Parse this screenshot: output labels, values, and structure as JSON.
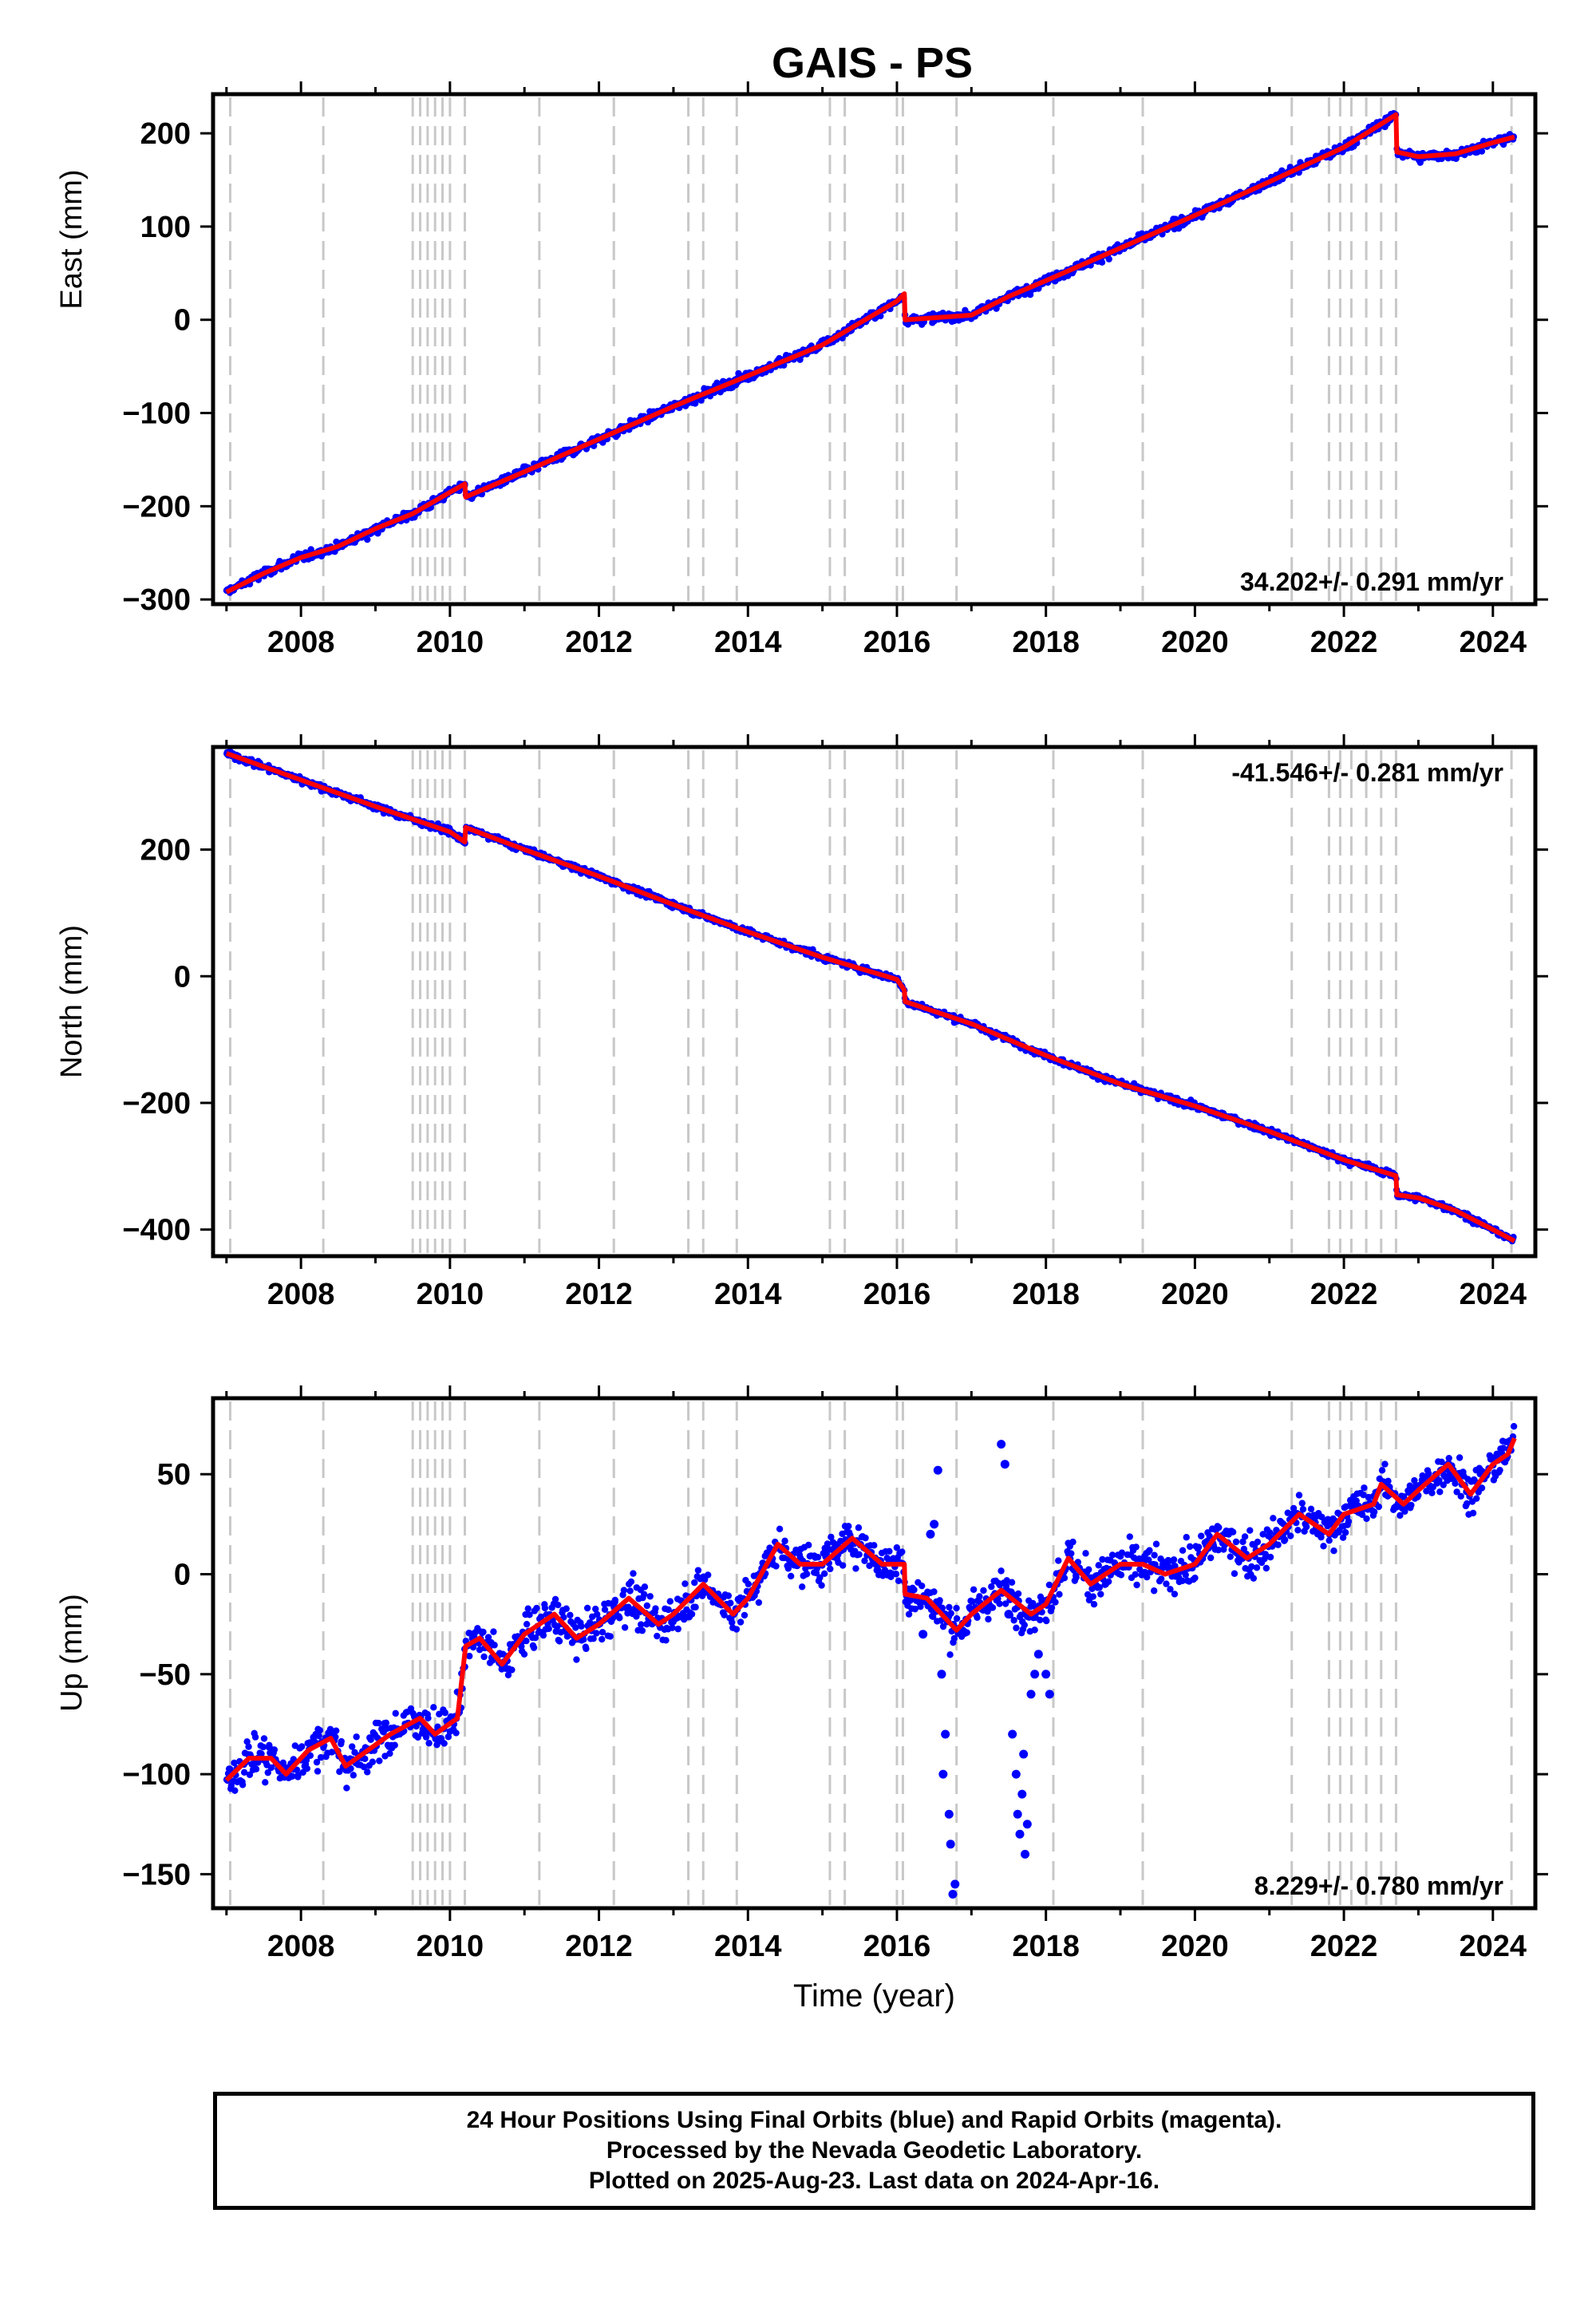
{
  "page": {
    "title": "GAIS - PS"
  },
  "colors": {
    "final_orbit_points": "#0000ff",
    "model_fit": "#ff0000",
    "event_lines": "#c8c8c8",
    "axes": "#000000"
  },
  "chart_data": [
    {
      "type": "scatter",
      "title": "GAIS - PS",
      "xlabel": "",
      "ylabel": "East (mm)",
      "xlim": [
        2006.82,
        2024.57
      ],
      "ylim": [
        -305,
        242
      ],
      "x_ticks": [
        2008,
        2010,
        2012,
        2014,
        2016,
        2018,
        2020,
        2022,
        2024
      ],
      "x_tick_labels": [
        "2008",
        "2010",
        "2012",
        "2014",
        "2016",
        "2018",
        "2020",
        "2022",
        "2024"
      ],
      "y_ticks": [
        -300,
        -200,
        -100,
        0,
        100,
        200
      ],
      "y_tick_labels": [
        "−300",
        "−200",
        "−100",
        "0",
        "100",
        "200"
      ],
      "rate_label": "34.202+/- 0.291 mm/yr",
      "rate_position": "bottom-right",
      "grid": false,
      "event_lines": [
        2007.05,
        2008.3,
        2009.5,
        2009.6,
        2009.7,
        2009.8,
        2009.9,
        2010.0,
        2010.2,
        2011.2,
        2012.2,
        2013.2,
        2013.4,
        2013.85,
        2015.1,
        2015.3,
        2016.0,
        2016.08,
        2016.8,
        2018.1,
        2019.3,
        2021.3,
        2021.8,
        2021.95,
        2022.1,
        2022.3,
        2022.5,
        2022.7,
        2024.25
      ],
      "series": [
        {
          "name": "final orbits",
          "x": [
            2007.0,
            2007.5,
            2008.0,
            2008.5,
            2009.0,
            2009.5,
            2010.0,
            2010.2,
            2010.21,
            2011.0,
            2012.0,
            2013.0,
            2014.0,
            2015.0,
            2016.0,
            2016.1,
            2016.11,
            2017.0,
            2017.5,
            2018.0,
            2019.0,
            2020.0,
            2021.0,
            2022.0,
            2022.7,
            2022.71,
            2023.0,
            2023.5,
            2024.0,
            2024.29
          ],
          "y": [
            -292,
            -272,
            -255,
            -243,
            -224,
            -208,
            -185,
            -176,
            -190,
            -163,
            -128,
            -93,
            -60,
            -27,
            20,
            28,
            0,
            5,
            25,
            42,
            77,
            112,
            148,
            185,
            220,
            180,
            175,
            178,
            190,
            196
          ]
        },
        {
          "name": "model fit",
          "x": [
            2007.0,
            2007.5,
            2008.0,
            2008.5,
            2009.0,
            2009.5,
            2010.0,
            2010.2,
            2010.21,
            2011.0,
            2012.0,
            2013.0,
            2014.0,
            2015.0,
            2016.0,
            2016.1,
            2016.11,
            2017.0,
            2017.5,
            2018.0,
            2019.0,
            2020.0,
            2021.0,
            2022.0,
            2022.7,
            2022.71,
            2023.0,
            2023.5,
            2024.0,
            2024.29
          ],
          "y": [
            -292,
            -272,
            -255,
            -243,
            -224,
            -208,
            -185,
            -176,
            -190,
            -163,
            -128,
            -93,
            -60,
            -27,
            20,
            28,
            0,
            5,
            25,
            42,
            77,
            112,
            148,
            185,
            220,
            180,
            175,
            178,
            190,
            196
          ]
        }
      ]
    },
    {
      "type": "scatter",
      "xlabel": "",
      "ylabel": "North (mm)",
      "xlim": [
        2006.82,
        2024.57
      ],
      "ylim": [
        -442,
        362
      ],
      "x_ticks": [
        2008,
        2010,
        2012,
        2014,
        2016,
        2018,
        2020,
        2022,
        2024
      ],
      "x_tick_labels": [
        "2008",
        "2010",
        "2012",
        "2014",
        "2016",
        "2018",
        "2020",
        "2022",
        "2024"
      ],
      "y_ticks": [
        -400,
        -200,
        0,
        200
      ],
      "y_tick_labels": [
        "−400",
        "−200",
        "0",
        "200"
      ],
      "rate_label": "-41.546+/- 0.281 mm/yr",
      "rate_position": "top-right",
      "grid": false,
      "event_lines": [
        2007.05,
        2008.3,
        2009.5,
        2009.6,
        2009.7,
        2009.8,
        2009.9,
        2010.0,
        2010.2,
        2011.2,
        2012.2,
        2013.2,
        2013.4,
        2013.85,
        2015.1,
        2015.3,
        2016.0,
        2016.08,
        2016.8,
        2018.1,
        2019.3,
        2021.3,
        2021.8,
        2021.95,
        2022.1,
        2022.3,
        2022.5,
        2022.7,
        2024.25
      ],
      "series": [
        {
          "name": "final orbits",
          "x": [
            2007.0,
            2008.0,
            2009.0,
            2010.0,
            2010.2,
            2010.21,
            2011.0,
            2012.0,
            2013.0,
            2014.0,
            2015.0,
            2016.0,
            2016.1,
            2016.11,
            2017.0,
            2018.0,
            2019.0,
            2020.0,
            2021.0,
            2022.0,
            2022.7,
            2022.71,
            2023.0,
            2023.5,
            2024.0,
            2024.29
          ],
          "y": [
            352,
            310,
            268,
            228,
            212,
            235,
            200,
            158,
            113,
            70,
            30,
            -5,
            -22,
            -40,
            -75,
            -125,
            -170,
            -205,
            -245,
            -290,
            -315,
            -345,
            -350,
            -370,
            -400,
            -418
          ]
        },
        {
          "name": "model fit",
          "x": [
            2007.0,
            2008.0,
            2009.0,
            2010.0,
            2010.2,
            2010.21,
            2011.0,
            2012.0,
            2013.0,
            2014.0,
            2015.0,
            2016.0,
            2016.1,
            2016.11,
            2017.0,
            2018.0,
            2019.0,
            2020.0,
            2021.0,
            2022.0,
            2022.7,
            2022.71,
            2023.0,
            2023.5,
            2024.0,
            2024.29
          ],
          "y": [
            352,
            310,
            268,
            228,
            212,
            235,
            200,
            158,
            113,
            70,
            30,
            -5,
            -22,
            -40,
            -75,
            -125,
            -170,
            -205,
            -245,
            -290,
            -315,
            -345,
            -350,
            -370,
            -400,
            -418
          ]
        }
      ]
    },
    {
      "type": "scatter",
      "xlabel": "Time (year)",
      "ylabel": "Up (mm)",
      "xlim": [
        2006.82,
        2024.57
      ],
      "ylim": [
        -167,
        88
      ],
      "x_ticks": [
        2008,
        2010,
        2012,
        2014,
        2016,
        2018,
        2020,
        2022,
        2024
      ],
      "x_tick_labels": [
        "2008",
        "2010",
        "2012",
        "2014",
        "2016",
        "2018",
        "2020",
        "2022",
        "2024"
      ],
      "y_ticks": [
        -150,
        -100,
        -50,
        0,
        50
      ],
      "y_tick_labels": [
        "−150",
        "−100",
        "−50",
        "0",
        "50"
      ],
      "rate_label": "8.229+/- 0.780 mm/yr",
      "rate_position": "bottom-right",
      "grid": false,
      "event_lines": [
        2007.05,
        2008.3,
        2009.5,
        2009.6,
        2009.7,
        2009.8,
        2009.9,
        2010.0,
        2010.2,
        2011.2,
        2012.2,
        2013.2,
        2013.4,
        2013.85,
        2015.1,
        2015.3,
        2016.0,
        2016.08,
        2016.8,
        2018.1,
        2019.3,
        2021.3,
        2021.8,
        2021.95,
        2022.1,
        2022.3,
        2022.5,
        2022.7,
        2024.25
      ],
      "series": [
        {
          "name": "final orbits",
          "x": [
            2007.0,
            2007.3,
            2007.6,
            2007.8,
            2008.1,
            2008.4,
            2008.6,
            2008.9,
            2009.2,
            2009.6,
            2009.8,
            2010.1,
            2010.21,
            2010.4,
            2010.7,
            2011.0,
            2011.4,
            2011.7,
            2012.0,
            2012.4,
            2012.8,
            2013.0,
            2013.4,
            2013.8,
            2014.0,
            2014.4,
            2014.7,
            2015.0,
            2015.4,
            2015.8,
            2016.0,
            2016.1,
            2016.11,
            2016.4,
            2016.8,
            2017.0,
            2017.4,
            2017.8,
            2018.0,
            2018.3,
            2018.6,
            2019.0,
            2019.3,
            2019.6,
            2020.0,
            2020.3,
            2020.7,
            2021.0,
            2021.4,
            2021.8,
            2022.0,
            2022.4,
            2022.5,
            2022.8,
            2023.0,
            2023.4,
            2023.7,
            2024.0,
            2024.2,
            2024.29
          ],
          "y": [
            -103,
            -92,
            -92,
            -100,
            -88,
            -82,
            -96,
            -88,
            -80,
            -72,
            -80,
            -72,
            -36,
            -32,
            -45,
            -30,
            -20,
            -32,
            -25,
            -12,
            -25,
            -20,
            -5,
            -20,
            -12,
            15,
            5,
            5,
            18,
            5,
            5,
            5,
            -10,
            -12,
            -28,
            -20,
            -8,
            -20,
            -15,
            8,
            -5,
            5,
            5,
            0,
            5,
            20,
            8,
            15,
            30,
            20,
            30,
            35,
            45,
            35,
            42,
            55,
            40,
            55,
            60,
            68
          ]
        },
        {
          "name": "model fit",
          "x": [
            2007.0,
            2007.3,
            2007.6,
            2007.8,
            2008.1,
            2008.4,
            2008.6,
            2008.9,
            2009.2,
            2009.6,
            2009.8,
            2010.1,
            2010.21,
            2010.4,
            2010.7,
            2011.0,
            2011.4,
            2011.7,
            2012.0,
            2012.4,
            2012.8,
            2013.0,
            2013.4,
            2013.8,
            2014.0,
            2014.4,
            2014.7,
            2015.0,
            2015.4,
            2015.8,
            2016.0,
            2016.1,
            2016.11,
            2016.4,
            2016.8,
            2017.0,
            2017.4,
            2017.8,
            2018.0,
            2018.3,
            2018.6,
            2019.0,
            2019.3,
            2019.6,
            2020.0,
            2020.3,
            2020.7,
            2021.0,
            2021.4,
            2021.8,
            2022.0,
            2022.4,
            2022.5,
            2022.8,
            2023.0,
            2023.4,
            2023.7,
            2024.0,
            2024.2,
            2024.29
          ],
          "y": [
            -103,
            -92,
            -92,
            -100,
            -88,
            -82,
            -96,
            -88,
            -80,
            -72,
            -80,
            -72,
            -36,
            -32,
            -45,
            -30,
            -20,
            -32,
            -25,
            -12,
            -25,
            -20,
            -5,
            -20,
            -12,
            15,
            5,
            5,
            18,
            5,
            5,
            5,
            -10,
            -12,
            -28,
            -20,
            -8,
            -20,
            -15,
            8,
            -5,
            5,
            5,
            0,
            5,
            20,
            8,
            15,
            30,
            20,
            30,
            35,
            45,
            35,
            42,
            55,
            40,
            55,
            60,
            68
          ]
        }
      ],
      "outliers": {
        "x": [
          2016.55,
          2016.6,
          2016.65,
          2016.7,
          2016.72,
          2016.75,
          2016.78,
          2017.4,
          2017.45,
          2017.5,
          2017.55,
          2017.6,
          2017.62,
          2017.65,
          2017.68,
          2017.7,
          2017.72,
          2017.75,
          2017.8,
          2017.85,
          2017.9,
          2016.35,
          2016.45,
          2016.5,
          2018.0,
          2018.05,
          2016.62
        ],
        "y": [
          52,
          -50,
          -80,
          -120,
          -135,
          -160,
          -155,
          65,
          55,
          -20,
          -80,
          -100,
          -120,
          -130,
          -110,
          -90,
          -140,
          -125,
          -60,
          -50,
          -40,
          -30,
          20,
          25,
          -50,
          -60,
          -100
        ]
      }
    }
  ],
  "footer": {
    "line1": "24 Hour Positions Using Final Orbits (blue) and Rapid Orbits (magenta).",
    "line2": "Processed by the Nevada Geodetic Laboratory.",
    "line3": "Plotted on 2025-Aug-23. Last data on 2024-Apr-16."
  }
}
